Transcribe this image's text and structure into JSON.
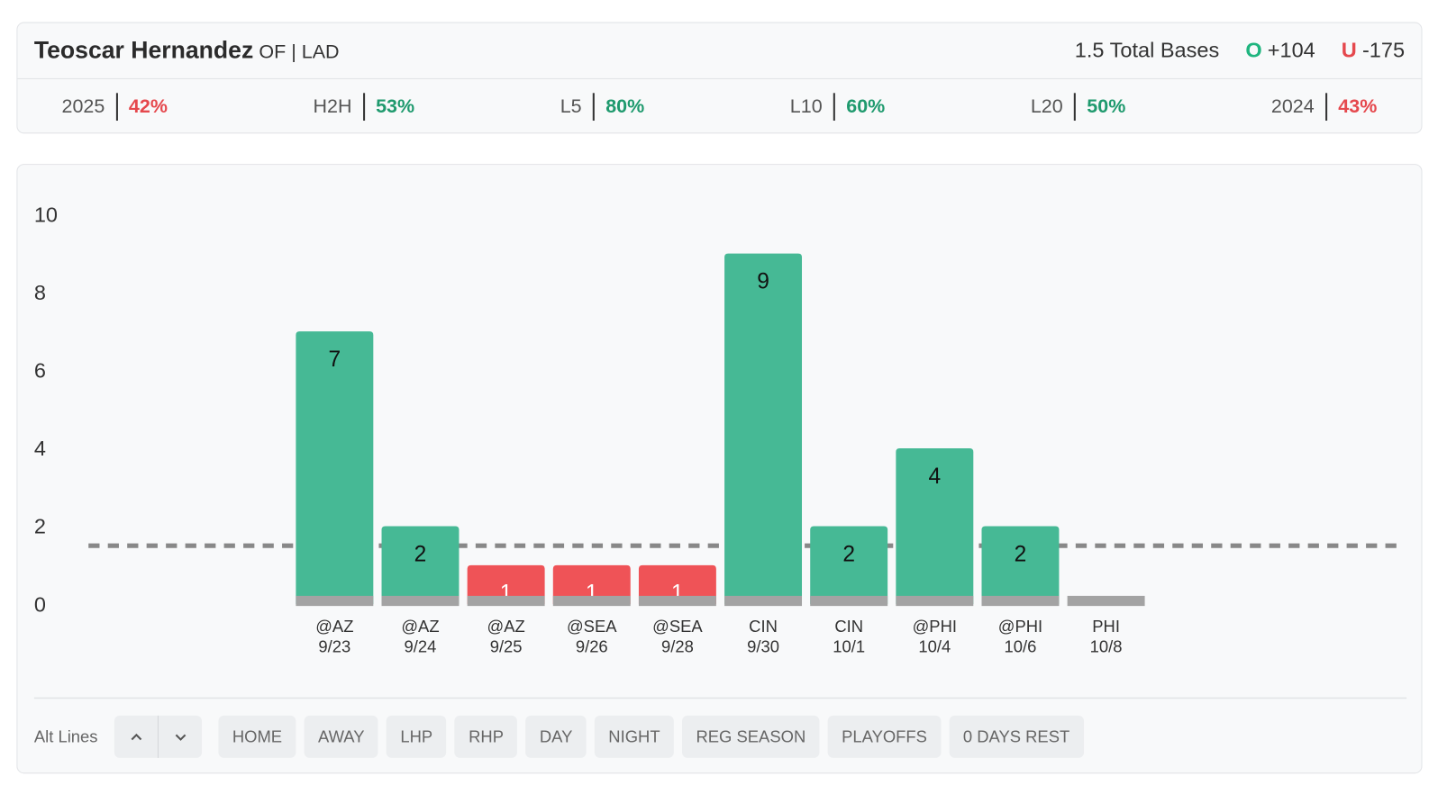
{
  "header": {
    "player": "Teoscar Hernandez",
    "position": "OF | LAD",
    "line": "1.5 Total Bases",
    "over_mark": "O",
    "over_odds": "+104",
    "under_mark": "U",
    "under_odds": "-175"
  },
  "stats": [
    {
      "label": "2025",
      "value": "42%",
      "color": "#e5484d"
    },
    {
      "label": "H2H",
      "value": "53%",
      "color": "#1f9a6e"
    },
    {
      "label": "L5",
      "value": "80%",
      "color": "#1f9a6e"
    },
    {
      "label": "L10",
      "value": "60%",
      "color": "#1f9a6e"
    },
    {
      "label": "L20",
      "value": "50%",
      "color": "#1f9a6e"
    },
    {
      "label": "2024",
      "value": "43%",
      "color": "#e5484d"
    }
  ],
  "chart_data": {
    "type": "bar",
    "categories": [
      "@AZ",
      "@AZ",
      "@AZ",
      "@SEA",
      "@SEA",
      "CIN",
      "CIN",
      "@PHI",
      "@PHI",
      "PHI"
    ],
    "dates": [
      "9/23",
      "9/24",
      "9/25",
      "9/26",
      "9/28",
      "9/30",
      "10/1",
      "10/4",
      "10/6",
      "10/8"
    ],
    "values": [
      7,
      2,
      1,
      1,
      1,
      9,
      2,
      4,
      2,
      null
    ],
    "threshold": 1.5,
    "over_color": "#46b995",
    "under_color": "#ef5357",
    "ylim": [
      0,
      10
    ],
    "yticks": [
      0,
      2,
      4,
      6,
      8,
      10
    ],
    "grid": false
  },
  "filters": {
    "label": "Alt Lines",
    "buttons": [
      "HOME",
      "AWAY",
      "LHP",
      "RHP",
      "DAY",
      "NIGHT",
      "REG SEASON",
      "PLAYOFFS",
      "0 DAYS REST"
    ]
  }
}
